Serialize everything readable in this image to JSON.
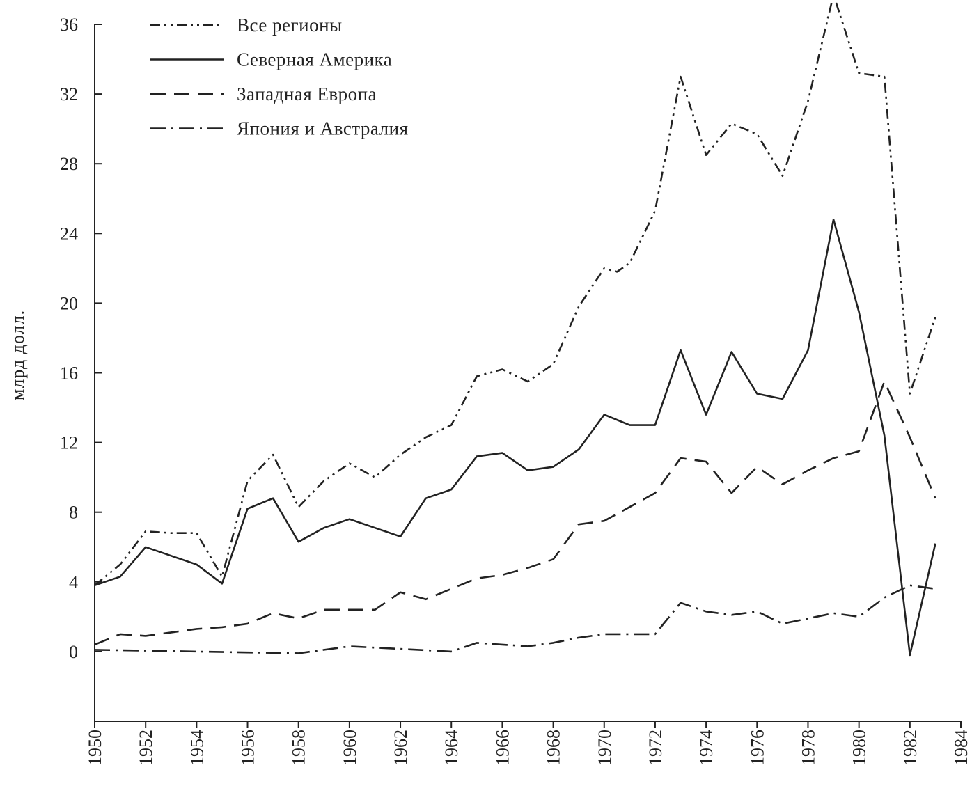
{
  "chart_data": {
    "type": "line",
    "title": "",
    "xlabel": "",
    "ylabel": "млрд долл.",
    "xlim": [
      1950,
      1984
    ],
    "ylim": [
      -4,
      36
    ],
    "y_ticks": [
      0,
      4,
      8,
      12,
      16,
      20,
      24,
      28,
      32,
      36
    ],
    "y_tick_labels": [
      "0",
      "4",
      "8",
      "12",
      "16",
      "20",
      "24",
      "28",
      "32",
      "36"
    ],
    "x_ticks": [
      1950,
      1952,
      1954,
      1956,
      1958,
      1960,
      1962,
      1964,
      1966,
      1968,
      1970,
      1972,
      1974,
      1976,
      1978,
      1980,
      1982,
      1984
    ],
    "x_tick_labels": [
      "1950",
      "1952",
      "1954",
      "1956",
      "1958",
      "1960",
      "1962",
      "1964",
      "1966",
      "1968",
      "1970",
      "1972",
      "1974",
      "1976",
      "1978",
      "1980",
      "1982",
      "1984"
    ],
    "grid": false,
    "legend_position": "top-left",
    "color": "#222222",
    "series": [
      {
        "name": "Все регионы",
        "style": "dash-dot-dot",
        "x": [
          1950,
          1951,
          1952,
          1953,
          1954,
          1955,
          1956,
          1957,
          1958,
          1959,
          1960,
          1961,
          1962,
          1963,
          1964,
          1965,
          1966,
          1967,
          1968,
          1969,
          1970,
          1970.5,
          1971,
          1972,
          1973,
          1974,
          1975,
          1976,
          1977,
          1978,
          1979,
          1980,
          1981,
          1982,
          1983
        ],
        "values": [
          3.8,
          5.0,
          6.9,
          6.8,
          6.8,
          4.3,
          9.8,
          11.3,
          8.3,
          9.8,
          10.8,
          10.0,
          11.3,
          12.3,
          13.0,
          15.8,
          16.2,
          15.5,
          16.5,
          19.8,
          22.0,
          21.8,
          22.3,
          25.3,
          33.0,
          28.5,
          30.3,
          29.7,
          27.3,
          31.6,
          37.7,
          33.2,
          33.0,
          14.8,
          19.2
        ]
      },
      {
        "name": "Северная Америка",
        "style": "solid",
        "x": [
          1950,
          1951,
          1952,
          1953,
          1954,
          1955,
          1956,
          1957,
          1958,
          1959,
          1960,
          1961,
          1962,
          1963,
          1964,
          1965,
          1966,
          1967,
          1968,
          1969,
          1970,
          1971,
          1972,
          1973,
          1974,
          1975,
          1976,
          1977,
          1978,
          1979,
          1980,
          1981,
          1982,
          1983
        ],
        "values": [
          3.8,
          4.3,
          6.0,
          5.5,
          5.0,
          3.9,
          8.2,
          8.8,
          6.3,
          7.1,
          7.6,
          7.1,
          6.6,
          8.8,
          9.3,
          11.2,
          11.4,
          10.4,
          10.6,
          11.6,
          13.6,
          13.0,
          13.0,
          17.3,
          13.6,
          17.2,
          14.8,
          14.5,
          17.3,
          24.8,
          19.5,
          12.4,
          -0.2,
          6.2
        ]
      },
      {
        "name": "Западная Европа",
        "style": "dashed",
        "x": [
          1950,
          1951,
          1952,
          1953,
          1954,
          1955,
          1956,
          1957,
          1958,
          1959,
          1960,
          1961,
          1962,
          1963,
          1964,
          1965,
          1966,
          1967,
          1968,
          1969,
          1970,
          1971,
          1972,
          1973,
          1974,
          1975,
          1976,
          1977,
          1978,
          1979,
          1980,
          1981,
          1982,
          1983
        ],
        "values": [
          0.4,
          1.0,
          0.9,
          1.1,
          1.3,
          1.4,
          1.6,
          2.2,
          1.9,
          2.4,
          2.4,
          2.4,
          3.4,
          3.0,
          3.6,
          4.2,
          4.4,
          4.8,
          5.3,
          7.3,
          7.5,
          8.3,
          9.1,
          11.1,
          10.9,
          9.1,
          10.6,
          9.6,
          10.4,
          11.1,
          11.5,
          15.5,
          12.3,
          8.8
        ]
      },
      {
        "name": "Япония и Австралия",
        "style": "dash-dot",
        "x": [
          1950,
          1952,
          1954,
          1956,
          1958,
          1960,
          1962,
          1964,
          1965,
          1966,
          1967,
          1968,
          1969,
          1970,
          1971,
          1972,
          1973,
          1974,
          1975,
          1976,
          1977,
          1978,
          1979,
          1980,
          1981,
          1982,
          1983
        ],
        "values": [
          0.1,
          0.05,
          0.0,
          -0.05,
          -0.1,
          0.3,
          0.15,
          0.0,
          0.5,
          0.4,
          0.3,
          0.5,
          0.8,
          1.0,
          1.0,
          1.0,
          2.8,
          2.3,
          2.1,
          2.3,
          1.6,
          1.9,
          2.2,
          2.0,
          3.1,
          3.8,
          3.6
        ]
      }
    ]
  }
}
